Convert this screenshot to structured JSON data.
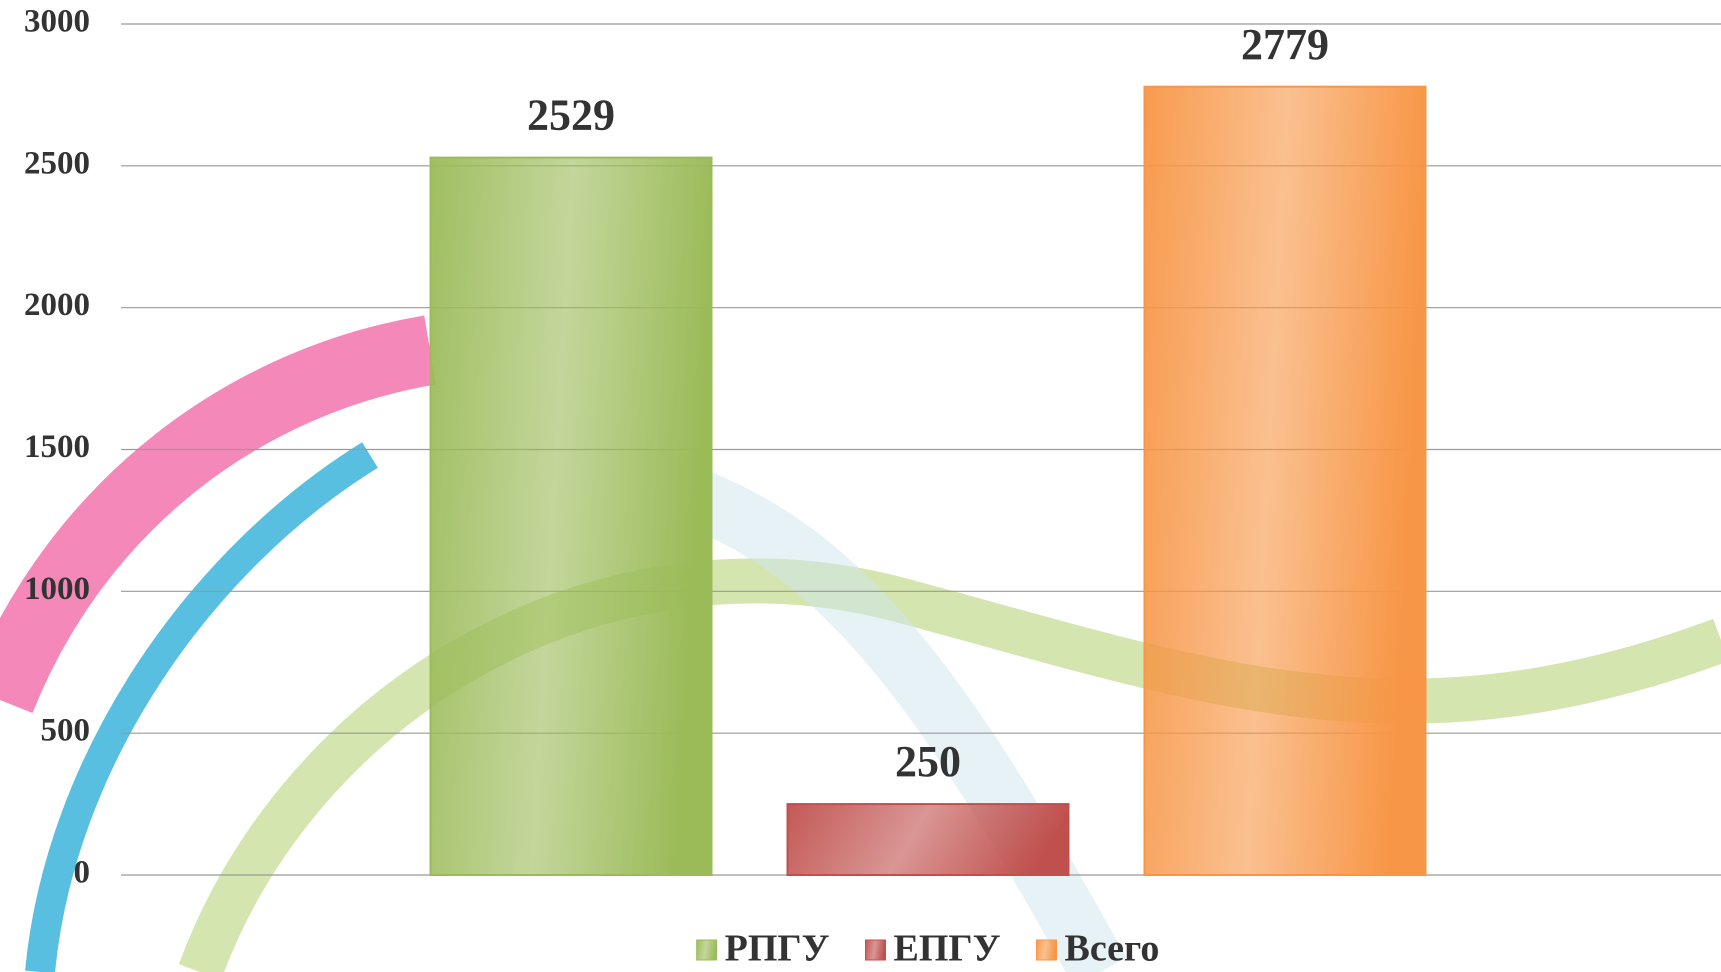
{
  "chart_data": {
    "type": "bar",
    "categories": [
      null
    ],
    "series": [
      {
        "name": "РПГУ",
        "color": "#9bbb59",
        "values": [
          2529
        ]
      },
      {
        "name": "ЕПГУ",
        "color": "#c0504d",
        "values": [
          250
        ]
      },
      {
        "name": "Всего",
        "color": "#f79646",
        "values": [
          2779
        ]
      }
    ],
    "ylim": [
      0,
      3000
    ],
    "yticks": [
      0,
      500,
      1000,
      1500,
      2000,
      2500,
      3000
    ],
    "grid": true,
    "legend": "bottom"
  }
}
